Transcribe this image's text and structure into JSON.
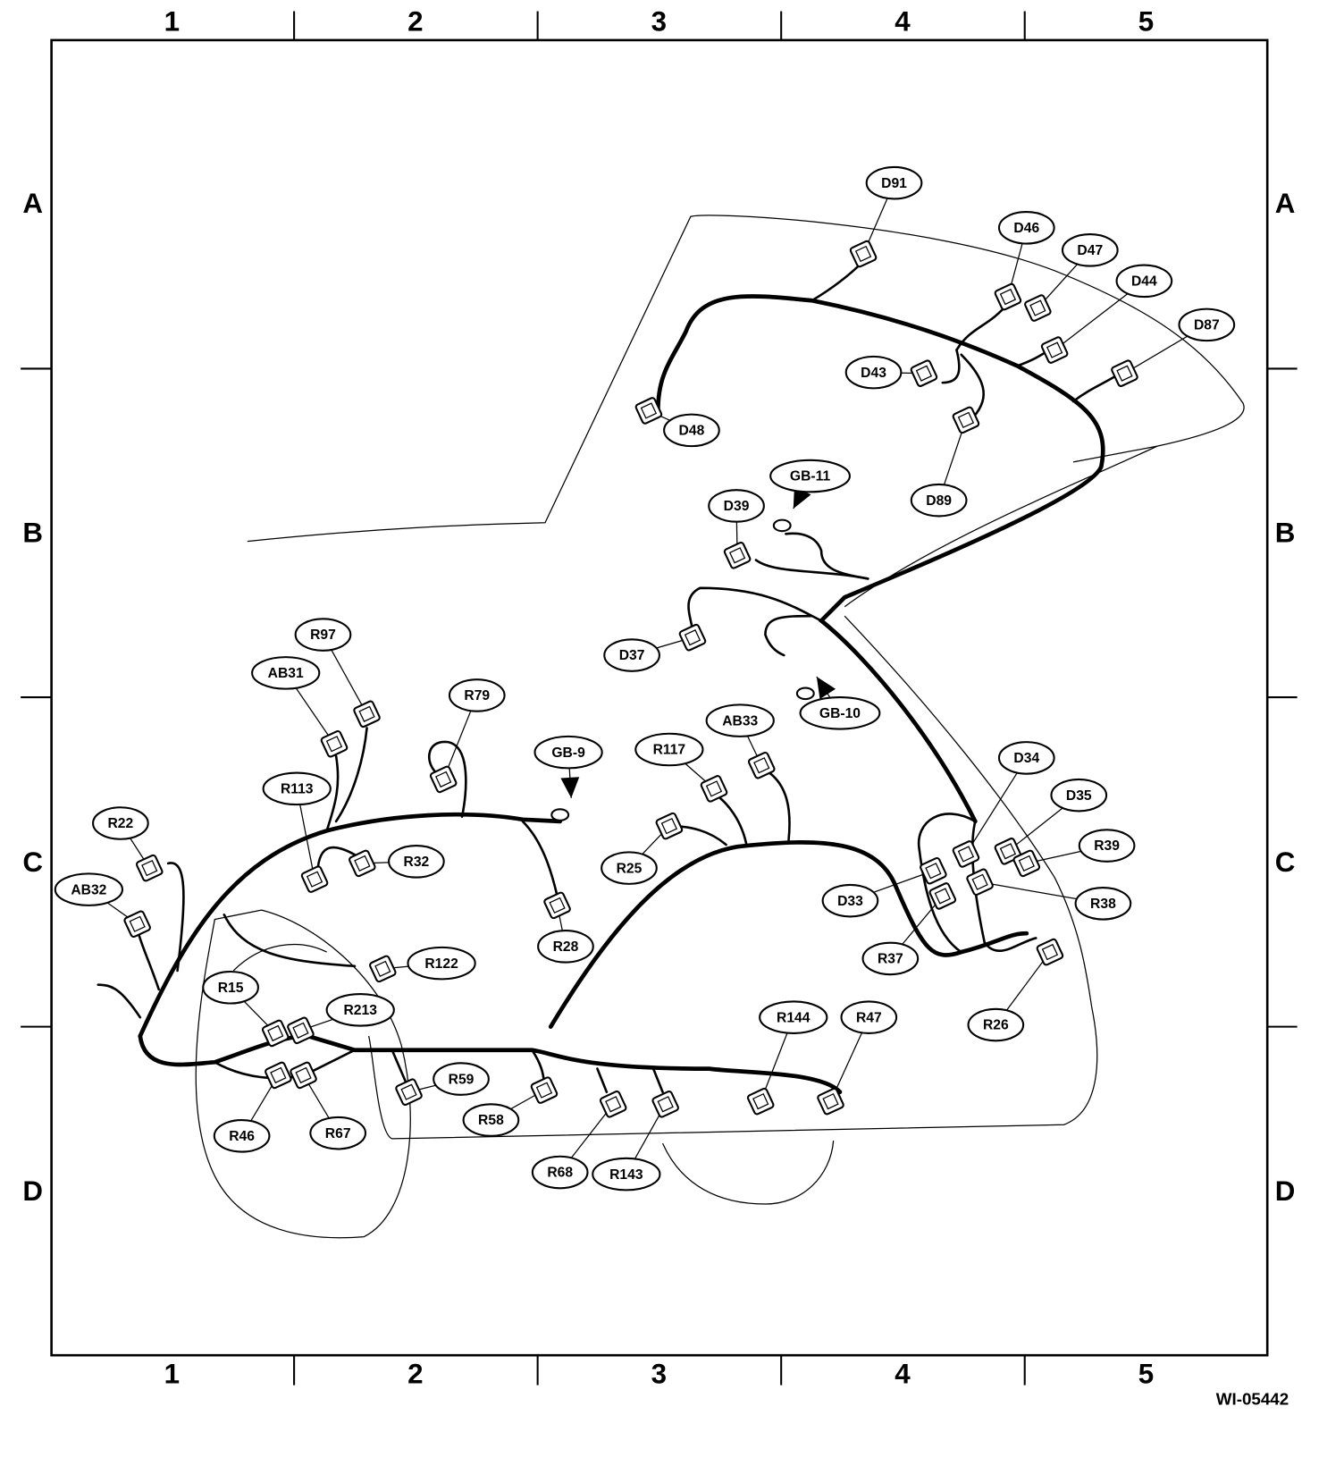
{
  "grid": {
    "columns": [
      "1",
      "2",
      "3",
      "4",
      "5"
    ],
    "rows": [
      "A",
      "B",
      "C",
      "D"
    ]
  },
  "connectors": [
    {
      "label": "D91"
    },
    {
      "label": "D46"
    },
    {
      "label": "D47"
    },
    {
      "label": "D44"
    },
    {
      "label": "D87"
    },
    {
      "label": "D43"
    },
    {
      "label": "D48"
    },
    {
      "label": "D89"
    },
    {
      "label": "GB-11"
    },
    {
      "label": "D39"
    },
    {
      "label": "D37"
    },
    {
      "label": "GB-10"
    },
    {
      "label": "R97"
    },
    {
      "label": "AB31"
    },
    {
      "label": "R79"
    },
    {
      "label": "GB-9"
    },
    {
      "label": "R117"
    },
    {
      "label": "AB33"
    },
    {
      "label": "D34"
    },
    {
      "label": "D35"
    },
    {
      "label": "R39"
    },
    {
      "label": "R38"
    },
    {
      "label": "R113"
    },
    {
      "label": "R22"
    },
    {
      "label": "R32"
    },
    {
      "label": "R25"
    },
    {
      "label": "D33"
    },
    {
      "label": "R37"
    },
    {
      "label": "AB32"
    },
    {
      "label": "R28"
    },
    {
      "label": "R122"
    },
    {
      "label": "R15"
    },
    {
      "label": "R213"
    },
    {
      "label": "R144"
    },
    {
      "label": "R47"
    },
    {
      "label": "R26"
    },
    {
      "label": "R59"
    },
    {
      "label": "R58"
    },
    {
      "label": "R46"
    },
    {
      "label": "R67"
    },
    {
      "label": "R68"
    },
    {
      "label": "R143"
    }
  ],
  "figure_id": "WI-05442"
}
